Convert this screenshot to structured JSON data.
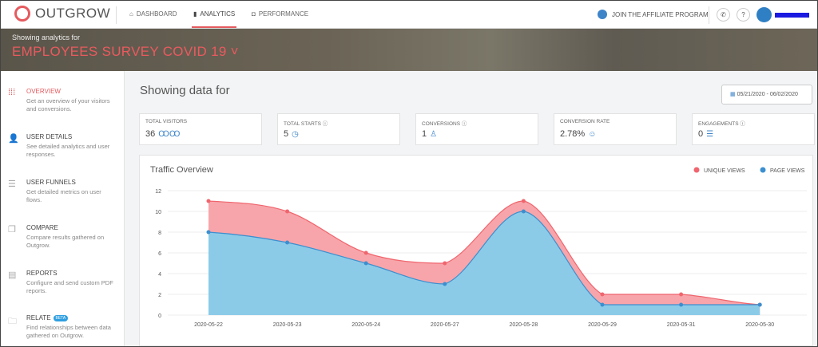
{
  "header": {
    "logo": "OUTGROW",
    "nav": [
      "DASHBOARD",
      "ANALYTICS",
      "PERFORMANCE"
    ],
    "active_nav": "ANALYTICS",
    "affiliate": "JOIN THE AFFILIATE PROGRAM",
    "phone_icon": "phone-icon",
    "help": "?"
  },
  "banner": {
    "subtitle": "Showing analytics for",
    "title": "EMPLOYEES SURVEY COVID 19 ˅"
  },
  "sidebar": [
    {
      "title": "OVERVIEW",
      "desc": "Get an overview of your visitors and conversions.",
      "active": true
    },
    {
      "title": "USER DETAILS",
      "desc": "See detailed analytics and user responses."
    },
    {
      "title": "USER FUNNELS",
      "desc": "Get detailed metrics on user flows."
    },
    {
      "title": "COMPARE",
      "desc": "Compare results gathered on Outgrow."
    },
    {
      "title": "REPORTS",
      "desc": "Configure and send custom PDF reports."
    },
    {
      "title": "RELATE",
      "badge": "BETA",
      "desc": "Find relationships between data gathered on Outgrow."
    }
  ],
  "main": {
    "heading": "Showing data for",
    "date_range": "05/21/2020 - 06/02/2020"
  },
  "cards": [
    {
      "label": "TOTAL VISITORS",
      "value": "36",
      "icon": "ꝎꝎ"
    },
    {
      "label": "TOTAL STARTS ⓘ",
      "value": "5",
      "icon": "◷"
    },
    {
      "label": "CONVERSIONS ⓘ",
      "value": "1",
      "icon": "♙"
    },
    {
      "label": "CONVERSION RATE",
      "value": "2.78%",
      "icon": "☺"
    },
    {
      "label": "ENGAGEMENTS ⓘ",
      "value": "0",
      "icon": "☰"
    }
  ],
  "chart_data": {
    "type": "area",
    "title": "Traffic Overview",
    "categories": [
      "2020-05-22",
      "2020-05-23",
      "2020-05-24",
      "2020-05-27",
      "2020-05-28",
      "2020-05-29",
      "2020-05-31",
      "2020-05-30"
    ],
    "series": [
      {
        "name": "UNIQUE VIEWS",
        "color": "#f0656e",
        "fill": "#f7a5aa",
        "values": [
          11,
          10,
          6,
          5,
          11,
          2,
          2,
          1
        ]
      },
      {
        "name": "PAGE VIEWS",
        "color": "#3b8fd0",
        "fill": "#8ccbe8",
        "values": [
          8,
          7,
          5,
          3,
          10,
          1,
          1,
          1
        ]
      }
    ],
    "yticks": [
      0,
      2,
      4,
      6,
      8,
      10,
      12
    ],
    "ylim": [
      0,
      12
    ],
    "legend": "top-right",
    "grid": true
  }
}
